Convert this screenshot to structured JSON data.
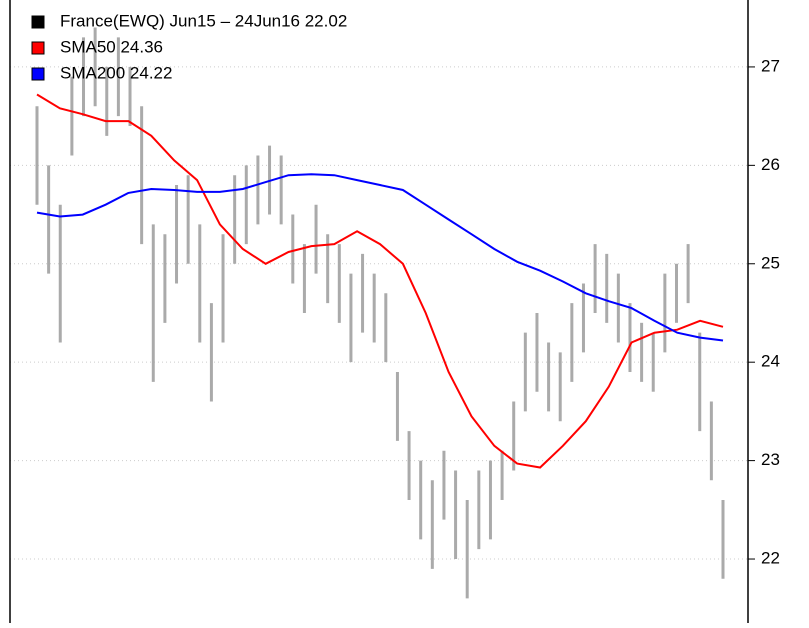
{
  "chart_data": {
    "type": "stock",
    "series": [
      {
        "name": "France(EWQ) Jun15 – 24Jun16 22.02",
        "color": "#000000",
        "bar_color": "#aaaaaa",
        "high": [
          26.6,
          26.0,
          25.6,
          26.9,
          27.3,
          27.4,
          27.0,
          27.3,
          27.0,
          26.6,
          25.4,
          25.3,
          25.8,
          25.9,
          25.4,
          24.6,
          25.3,
          25.9,
          26.0,
          26.1,
          26.2,
          26.1,
          25.5,
          25.2,
          25.6,
          25.3,
          25.2,
          24.9,
          25.1,
          24.9,
          24.7,
          23.9,
          23.3,
          23.0,
          22.8,
          23.1,
          22.9,
          22.6,
          22.9,
          23.0,
          23.1,
          23.6,
          24.3,
          24.5,
          24.2,
          24.1,
          24.6,
          24.8,
          25.2,
          25.1,
          24.9,
          24.6,
          24.4,
          24.3,
          24.9,
          25.0,
          25.2,
          24.3,
          23.6,
          22.6
        ],
        "low": [
          25.6,
          24.9,
          24.2,
          26.1,
          26.5,
          26.6,
          26.3,
          26.5,
          26.4,
          25.2,
          23.8,
          24.4,
          24.8,
          25.0,
          24.2,
          23.6,
          24.2,
          25.0,
          25.2,
          25.4,
          25.5,
          25.4,
          24.8,
          24.5,
          24.9,
          24.6,
          24.4,
          24.0,
          24.3,
          24.2,
          24.0,
          23.2,
          22.6,
          22.2,
          21.9,
          22.4,
          22.0,
          21.6,
          22.1,
          22.2,
          22.6,
          22.9,
          23.5,
          23.7,
          23.5,
          23.4,
          23.8,
          24.1,
          24.5,
          24.4,
          24.2,
          23.9,
          23.8,
          23.7,
          24.1,
          24.4,
          24.6,
          23.3,
          22.8,
          21.8
        ]
      },
      {
        "name": "SMA50 24.36",
        "color": "#ff0000",
        "values": [
          26.72,
          26.58,
          26.52,
          26.45,
          26.45,
          26.3,
          26.05,
          25.85,
          25.4,
          25.15,
          25.0,
          25.12,
          25.18,
          25.2,
          25.33,
          25.2,
          25.0,
          24.5,
          23.9,
          23.45,
          23.15,
          22.97,
          22.93,
          23.15,
          23.4,
          23.75,
          24.2,
          24.3,
          24.33,
          24.42,
          24.36
        ]
      },
      {
        "name": "SMA200 24.22",
        "color": "#0000ff",
        "values": [
          25.52,
          25.48,
          25.5,
          25.6,
          25.72,
          25.76,
          25.75,
          25.73,
          25.73,
          25.76,
          25.83,
          25.9,
          25.91,
          25.9,
          25.85,
          25.8,
          25.75,
          25.6,
          25.45,
          25.3,
          25.15,
          25.02,
          24.93,
          24.82,
          24.7,
          24.62,
          24.55,
          24.42,
          24.3,
          24.25,
          24.22
        ]
      }
    ],
    "ylim": [
      21.35,
      27.68
    ],
    "yticks": [
      22,
      23,
      24,
      25,
      26,
      27
    ],
    "grid": true,
    "legend": "top-left"
  }
}
